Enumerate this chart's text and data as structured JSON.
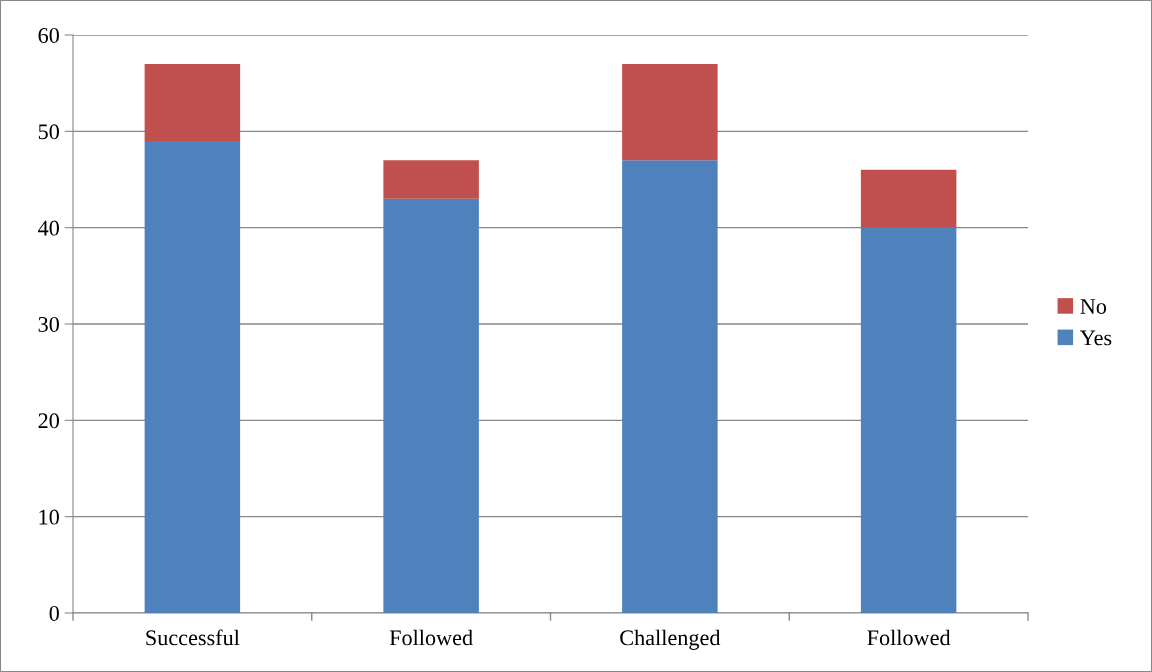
{
  "chart_data": {
    "type": "bar",
    "stacked": true,
    "categories": [
      "Successful",
      "Followed",
      "Challenged",
      "Followed"
    ],
    "series": [
      {
        "name": "Yes",
        "color": "#4f81bd",
        "values": [
          49,
          43,
          47,
          40
        ]
      },
      {
        "name": "No",
        "color": "#c0504d",
        "values": [
          8,
          4,
          10,
          6
        ]
      }
    ],
    "ylim": [
      0,
      60
    ],
    "yticks": [
      0,
      10,
      20,
      30,
      40,
      50,
      60
    ],
    "grid": "y",
    "legend": "right"
  }
}
